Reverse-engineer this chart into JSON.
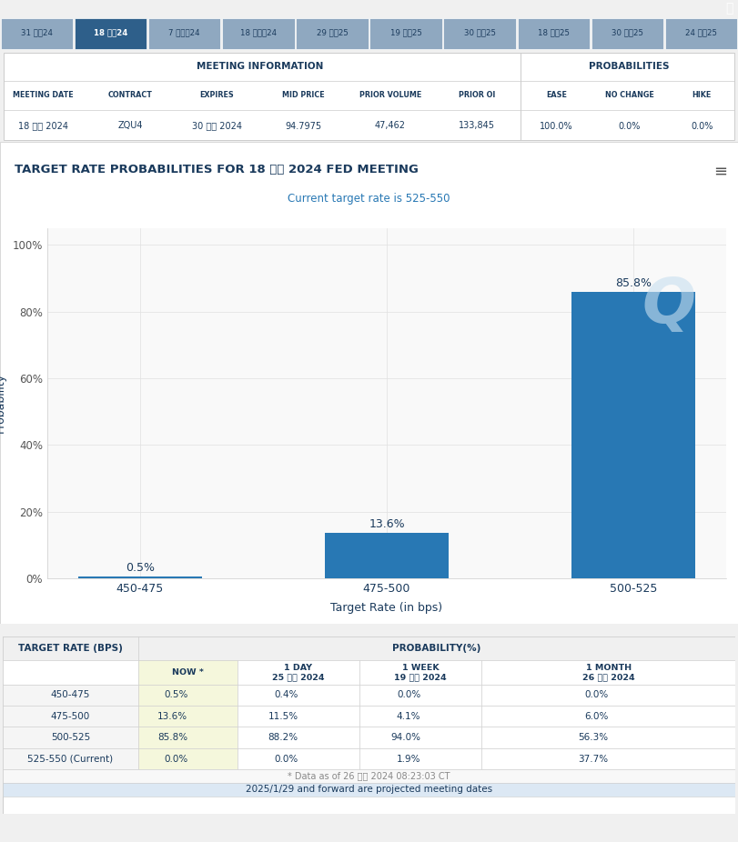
{
  "header_bg": "#5b7fa6",
  "tab_labels": [
    "31 七月24",
    "18 九月24",
    "7 十一月24",
    "18 十二月24",
    "29 一月25",
    "19 三月25",
    "30 四月25",
    "18 六月25",
    "30 七月25",
    "24 九月25"
  ],
  "active_tab_index": 1,
  "active_tab_bg": "#2e5f8a",
  "inactive_tab_bg": "#8fa8c0",
  "tab_text_color": "#1a3a5c",
  "active_tab_text_color": "#ffffff",
  "meeting_info_headers": [
    "MEETING DATE",
    "CONTRACT",
    "EXPIRES",
    "MID PRICE",
    "PRIOR VOLUME",
    "PRIOR OI"
  ],
  "meeting_info_values": [
    "18 九月 2024",
    "ZQU4",
    "30 九月 2024",
    "94.7975",
    "47,462",
    "133,845"
  ],
  "prob_headers": [
    "EASE",
    "NO CHANGE",
    "HIKE"
  ],
  "prob_values": [
    "100.0%",
    "0.0%",
    "0.0%"
  ],
  "chart_title": "TARGET RATE PROBABILITIES FOR 18 九月 2024 FED MEETING",
  "chart_subtitle": "Current target rate is 525-550",
  "bar_color": "#2878b4",
  "bar_categories": [
    "450-475",
    "475-500",
    "500-525"
  ],
  "bar_values": [
    0.5,
    13.6,
    85.8
  ],
  "xlabel": "Target Rate (in bps)",
  "ylabel": "Probability",
  "yticks": [
    0,
    20,
    40,
    60,
    80,
    100
  ],
  "ytick_labels": [
    "0%",
    "20%",
    "40%",
    "60%",
    "80%",
    "100%"
  ],
  "table_sub_headers": [
    "NOW *",
    "1 DAY\n25 七月 2024",
    "1 WEEK\n19 七月 2024",
    "1 MONTH\n26 六月 2024"
  ],
  "table_rows": [
    [
      "450-475",
      "0.5%",
      "0.4%",
      "0.0%",
      "0.0%"
    ],
    [
      "475-500",
      "13.6%",
      "11.5%",
      "4.1%",
      "6.0%"
    ],
    [
      "500-525",
      "85.8%",
      "88.2%",
      "94.0%",
      "56.3%"
    ],
    [
      "525-550 (Current)",
      "0.0%",
      "0.0%",
      "1.9%",
      "37.7%"
    ]
  ],
  "now_col_bg": "#f5f7dc",
  "footer_text1": "* Data as of 26 七月 2024 08:23:03 CT",
  "footer_text2": "2025/1/29 and forward are projected meeting dates",
  "border_color": "#cccccc",
  "text_dark": "#1a3a5c",
  "text_gray": "#555555",
  "text_blue": "#2878b4"
}
